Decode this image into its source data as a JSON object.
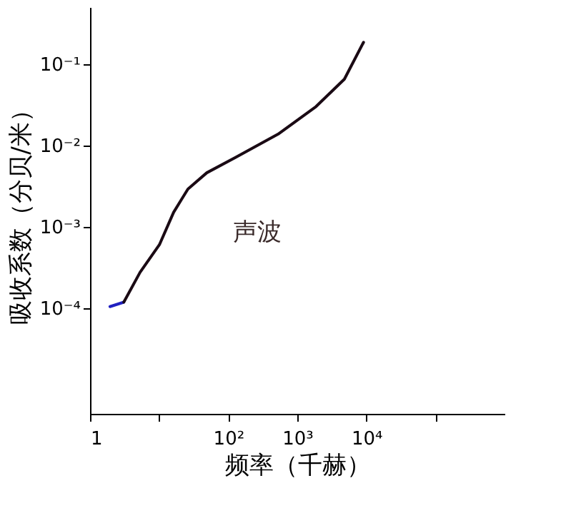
{
  "chart_data": {
    "type": "line",
    "xlabel": "频率（千赫）",
    "ylabel": "吸收系数（分贝/米）",
    "log": "xy",
    "grid": false,
    "marker": "none",
    "line_style": "solid",
    "xlim": [
      1,
      1000000
    ],
    "ylim": [
      5e-06,
      0.5
    ],
    "xticks": [
      {
        "value": 1,
        "label": "1"
      },
      {
        "value": 10,
        "label": null
      },
      {
        "value": 100,
        "label": "10²"
      },
      {
        "value": 1000,
        "label": "10³"
      },
      {
        "value": 10000,
        "label": "10⁴"
      },
      {
        "value": 100000,
        "label": null
      }
    ],
    "yticks": [
      {
        "value": 0.0001,
        "label": "10⁻⁴"
      },
      {
        "value": 0.001,
        "label": "10⁻³"
      },
      {
        "value": 0.01,
        "label": "10⁻²"
      },
      {
        "value": 0.1,
        "label": "10⁻¹"
      }
    ],
    "series": [
      {
        "color": "#2020c0",
        "x": [
          1.94,
          3.08
        ],
        "values": [
          0.000104,
          0.000118
        ]
      },
      {
        "color": "#1a0a14",
        "x": [
          3.08,
          5.3,
          10.1,
          16.2,
          26.1,
          49,
          127,
          526,
          1870,
          4800,
          9100
        ],
        "values": [
          0.000118,
          0.000275,
          0.0006,
          0.0015,
          0.0029,
          0.0046,
          0.0071,
          0.0137,
          0.03,
          0.065,
          0.185
        ]
      }
    ],
    "annotations": [
      "声波"
    ]
  }
}
